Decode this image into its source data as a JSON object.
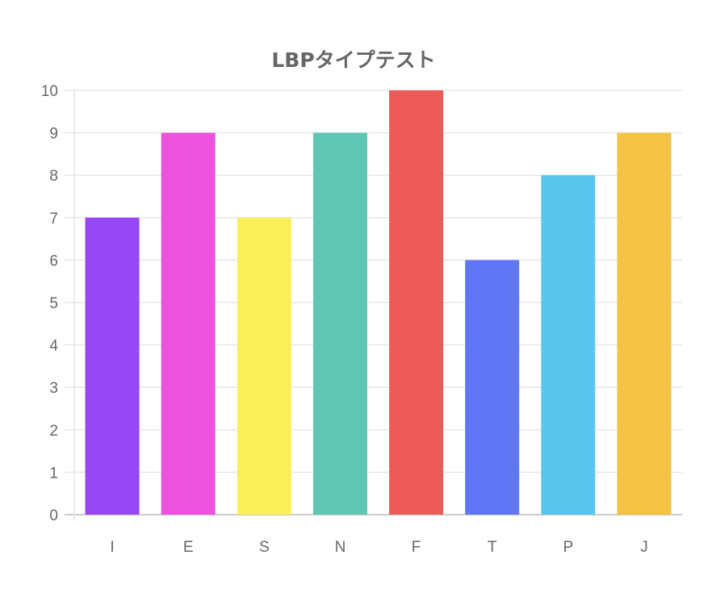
{
  "chart_data": {
    "type": "bar",
    "title": "LBPタイプテスト",
    "categories": [
      "I",
      "E",
      "S",
      "N",
      "F",
      "T",
      "P",
      "J"
    ],
    "values": [
      7,
      9,
      7,
      9,
      10,
      6,
      8,
      9
    ],
    "colors": [
      "#9747F5",
      "#EC52DC",
      "#FAEF58",
      "#5EC6B2",
      "#EC5B57",
      "#6076F5",
      "#5BC6EC",
      "#F4C344"
    ],
    "ylim": [
      0,
      10
    ],
    "yticks": [
      "0",
      "1",
      "2",
      "3",
      "4",
      "5",
      "6",
      "7",
      "8",
      "9",
      "10"
    ],
    "grid": true,
    "legend": "none"
  }
}
